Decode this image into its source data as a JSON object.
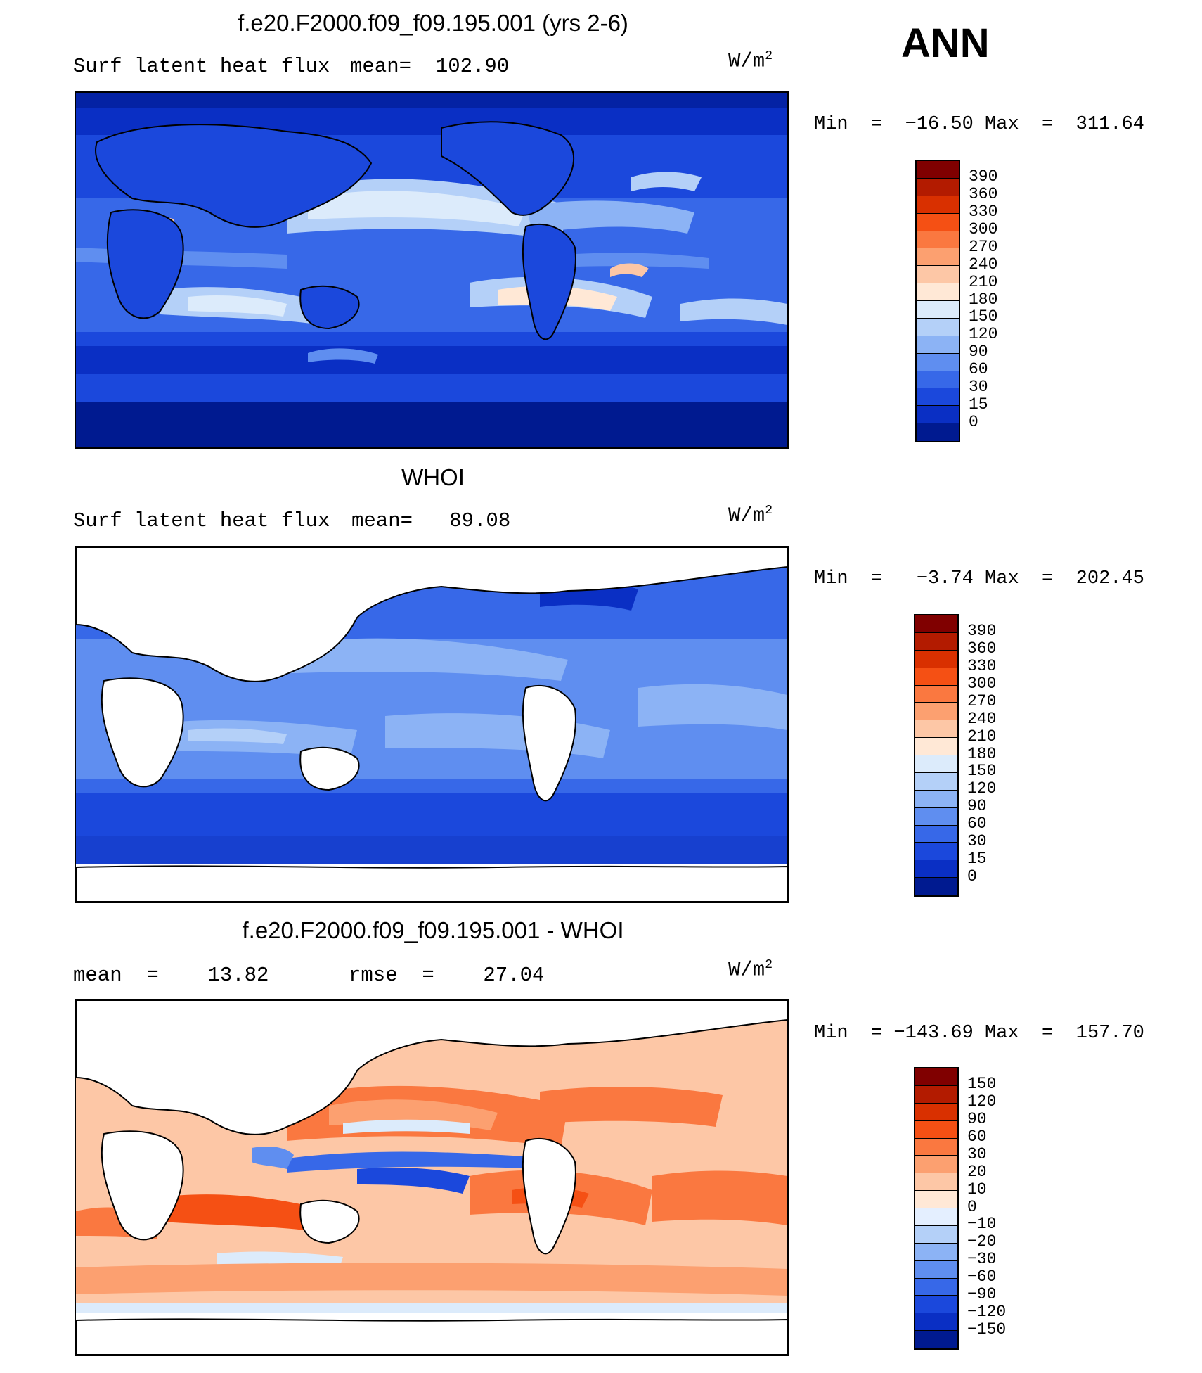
{
  "header": {
    "season": "ANN"
  },
  "panels": [
    {
      "title": "f.e20.F2000.f09_f09.195.001 (yrs 2-6)",
      "left_label": "Surf latent heat flux",
      "mid_label": "mean=  102.90",
      "units_base": "W/m",
      "units_exp": "2",
      "minmax": "Min  =  −16.50 Max  =  311.64",
      "colorbar": {
        "ticks": [
          "390",
          "360",
          "330",
          "300",
          "270",
          "240",
          "210",
          "180",
          "150",
          "120",
          "90",
          "60",
          "30",
          "15",
          "0"
        ],
        "colors": [
          "#800000",
          "#b31b00",
          "#d93000",
          "#f55014",
          "#fa7840",
          "#fca070",
          "#fdc7a6",
          "#ffe8d6",
          "#dcebfb",
          "#b4d0f8",
          "#8cb3f5",
          "#5f8ef0",
          "#3768e8",
          "#1b48dc",
          "#0a2fc4",
          "#001a90"
        ]
      }
    },
    {
      "title": "WHOI",
      "left_label": "Surf latent heat flux",
      "mid_label": "mean=   89.08",
      "units_base": "W/m",
      "units_exp": "2",
      "minmax": "Min  =   −3.74 Max  =  202.45",
      "colorbar": {
        "ticks": [
          "390",
          "360",
          "330",
          "300",
          "270",
          "240",
          "210",
          "180",
          "150",
          "120",
          "90",
          "60",
          "30",
          "15",
          "0"
        ],
        "colors": [
          "#800000",
          "#b31b00",
          "#d93000",
          "#f55014",
          "#fa7840",
          "#fca070",
          "#fdc7a6",
          "#ffe8d6",
          "#dcebfb",
          "#b4d0f8",
          "#8cb3f5",
          "#5f8ef0",
          "#3768e8",
          "#1b48dc",
          "#0a2fc4",
          "#001a90"
        ]
      }
    },
    {
      "title": "f.e20.F2000.f09_f09.195.001 - WHOI",
      "left_label": "mean  =    13.82",
      "mid_label": "rmse  =    27.04",
      "units_base": "W/m",
      "units_exp": "2",
      "minmax": "Min  = −143.69 Max  =  157.70",
      "colorbar": {
        "ticks": [
          "150",
          "120",
          "90",
          "60",
          "30",
          "20",
          "10",
          "0",
          "−10",
          "−20",
          "−30",
          "−60",
          "−90",
          "−120",
          "−150"
        ],
        "colors": [
          "#800000",
          "#b31b00",
          "#d93000",
          "#f55014",
          "#fa7840",
          "#fca070",
          "#fdc7a6",
          "#ffe8d6",
          "#e4efff",
          "#b4d0f8",
          "#8cb3f5",
          "#5f8ef0",
          "#3768e8",
          "#1b48dc",
          "#0a2fc4",
          "#001a90"
        ]
      }
    }
  ]
}
